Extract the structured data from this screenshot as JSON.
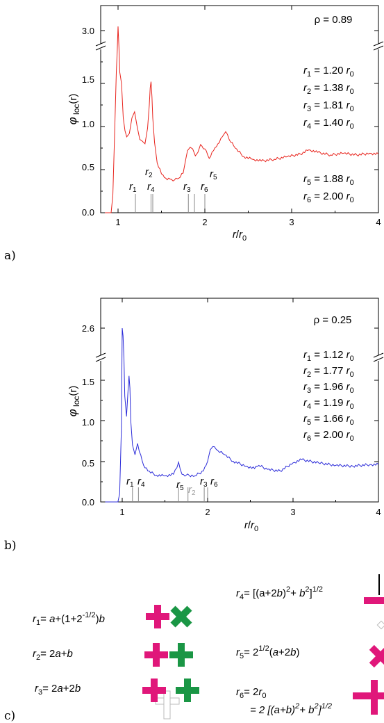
{
  "panel_labels": [
    "a)",
    "b)",
    "c)"
  ],
  "colors": {
    "red": "#e8231c",
    "blue": "#2b2bd9",
    "magenta": "#e0177a",
    "green": "#1a9645",
    "grey": "#bbbbbb"
  },
  "chart_data": [
    {
      "type": "line",
      "panel": "a)",
      "xlabel": "r/r0",
      "ylabel": "φloc(r)",
      "xlim": [
        0.8,
        4.0
      ],
      "ylim": [
        0.0,
        3.0
      ],
      "y_break": true,
      "xticks": [
        "1",
        "2",
        "3",
        "4"
      ],
      "yticks": [
        "0.0",
        "0.5",
        "1.0",
        "1.5",
        "3.0"
      ],
      "density_label": "ρ = 0.89",
      "color": "#e8231c",
      "x": [
        0.8,
        0.92,
        0.94,
        0.96,
        0.98,
        0.99,
        1.0,
        1.01,
        1.02,
        1.04,
        1.06,
        1.08,
        1.1,
        1.13,
        1.16,
        1.19,
        1.22,
        1.25,
        1.28,
        1.31,
        1.34,
        1.36,
        1.37,
        1.38,
        1.39,
        1.4,
        1.42,
        1.45,
        1.5,
        1.55,
        1.6,
        1.65,
        1.7,
        1.75,
        1.78,
        1.8,
        1.83,
        1.86,
        1.89,
        1.92,
        1.95,
        2.0,
        2.05,
        2.1,
        2.15,
        2.2,
        2.24,
        2.28,
        2.35,
        2.45,
        2.55,
        2.65,
        2.8,
        2.95,
        3.1,
        3.2,
        3.3,
        3.45,
        3.6,
        3.75,
        3.9,
        4.0
      ],
      "y": [
        0.0,
        0.0,
        0.2,
        0.9,
        2.0,
        2.5,
        3.1,
        2.6,
        2.0,
        1.5,
        1.1,
        0.95,
        0.88,
        0.92,
        1.1,
        1.17,
        1.0,
        0.85,
        0.83,
        0.8,
        0.98,
        1.25,
        1.45,
        1.52,
        1.35,
        1.1,
        0.82,
        0.58,
        0.45,
        0.4,
        0.39,
        0.38,
        0.4,
        0.46,
        0.62,
        0.72,
        0.76,
        0.74,
        0.66,
        0.7,
        0.79,
        0.74,
        0.63,
        0.72,
        0.8,
        0.88,
        0.94,
        0.85,
        0.75,
        0.65,
        0.62,
        0.6,
        0.62,
        0.65,
        0.68,
        0.73,
        0.7,
        0.67,
        0.69,
        0.67,
        0.69,
        0.68
      ],
      "markers": [
        {
          "label": "r1",
          "x": 1.2
        },
        {
          "label": "r2",
          "x": 1.38
        },
        {
          "label": "r3",
          "x": 1.81
        },
        {
          "label": "r4",
          "x": 1.4
        },
        {
          "label": "r5",
          "x": 1.88
        },
        {
          "label": "r6",
          "x": 2.0
        }
      ],
      "annotations": [
        {
          "name": "r1",
          "sub": "1",
          "value": "1.20",
          "unit": "r",
          "unit_sub": "0"
        },
        {
          "name": "r2",
          "sub": "2",
          "value": "1.38",
          "unit": "r",
          "unit_sub": "0"
        },
        {
          "name": "r3",
          "sub": "3",
          "value": "1.81",
          "unit": "r",
          "unit_sub": "0"
        },
        {
          "name": "r4",
          "sub": "4",
          "value": "1.40",
          "unit": "r",
          "unit_sub": "0"
        },
        {
          "name": "r5",
          "sub": "5",
          "value": "1.88",
          "unit": "r",
          "unit_sub": "0"
        },
        {
          "name": "r6",
          "sub": "6",
          "value": "2.00",
          "unit": "r",
          "unit_sub": "0"
        }
      ]
    },
    {
      "type": "line",
      "panel": "b)",
      "xlabel": "r/r0",
      "ylabel": "φloc(r)",
      "xlim": [
        0.8,
        4.0
      ],
      "ylim": [
        0.0,
        2.6
      ],
      "y_break": true,
      "xticks": [
        "1",
        "2",
        "3",
        "4"
      ],
      "yticks": [
        "0.0",
        "0.5",
        "1.0",
        "1.5",
        "2.6"
      ],
      "density_label": "ρ = 0.25",
      "color": "#2b2bd9",
      "x": [
        0.8,
        0.95,
        0.97,
        0.99,
        1.0,
        1.01,
        1.02,
        1.03,
        1.05,
        1.07,
        1.08,
        1.09,
        1.1,
        1.12,
        1.15,
        1.18,
        1.2,
        1.25,
        1.3,
        1.4,
        1.5,
        1.6,
        1.64,
        1.66,
        1.68,
        1.7,
        1.75,
        1.85,
        1.95,
        2.0,
        2.03,
        2.06,
        2.12,
        2.2,
        2.3,
        2.45,
        2.55,
        2.6,
        2.7,
        2.85,
        3.0,
        3.1,
        3.3,
        3.5,
        3.7,
        3.9,
        4.0
      ],
      "y": [
        0.0,
        0.0,
        0.1,
        0.9,
        2.6,
        2.4,
        1.8,
        1.3,
        1.05,
        1.4,
        1.55,
        1.4,
        1.0,
        0.7,
        0.58,
        0.72,
        0.62,
        0.45,
        0.38,
        0.33,
        0.32,
        0.34,
        0.42,
        0.49,
        0.4,
        0.34,
        0.33,
        0.32,
        0.38,
        0.5,
        0.64,
        0.68,
        0.63,
        0.58,
        0.5,
        0.44,
        0.41,
        0.45,
        0.4,
        0.38,
        0.48,
        0.52,
        0.48,
        0.45,
        0.44,
        0.46,
        0.46
      ],
      "markers": [
        {
          "label": "r1",
          "x": 1.12
        },
        {
          "label": "r2",
          "x": 1.77
        },
        {
          "label": "r3",
          "x": 1.96
        },
        {
          "label": "r4",
          "x": 1.19
        },
        {
          "label": "r5",
          "x": 1.66
        },
        {
          "label": "r6",
          "x": 2.0
        }
      ],
      "annotations": [
        {
          "name": "r1",
          "sub": "1",
          "value": "1.12",
          "unit": "r",
          "unit_sub": "0"
        },
        {
          "name": "r2",
          "sub": "2",
          "value": "1.77",
          "unit": "r",
          "unit_sub": "0"
        },
        {
          "name": "r3",
          "sub": "3",
          "value": "1.96",
          "unit": "r",
          "unit_sub": "0"
        },
        {
          "name": "r4",
          "sub": "4",
          "value": "1.19",
          "unit": "r",
          "unit_sub": "0"
        },
        {
          "name": "r5",
          "sub": "5",
          "value": "1.66",
          "unit": "r",
          "unit_sub": "0"
        },
        {
          "name": "r6",
          "sub": "6",
          "value": "2.00",
          "unit": "r",
          "unit_sub": "0"
        }
      ]
    }
  ],
  "formulas": {
    "r1": "r1= a+(1+2^-1/2)b",
    "r2": "r2= 2a+b",
    "r3": "r3= 2a+2b",
    "r4": "r4= [(a+2b)^2+ b^2]^1/2",
    "r5": "r5= 2^1/2(a+2b)",
    "r6_line1": "r6= 2r0",
    "r6_line2": "= 2 [(a+b)^2+ b^2]^1/2"
  }
}
